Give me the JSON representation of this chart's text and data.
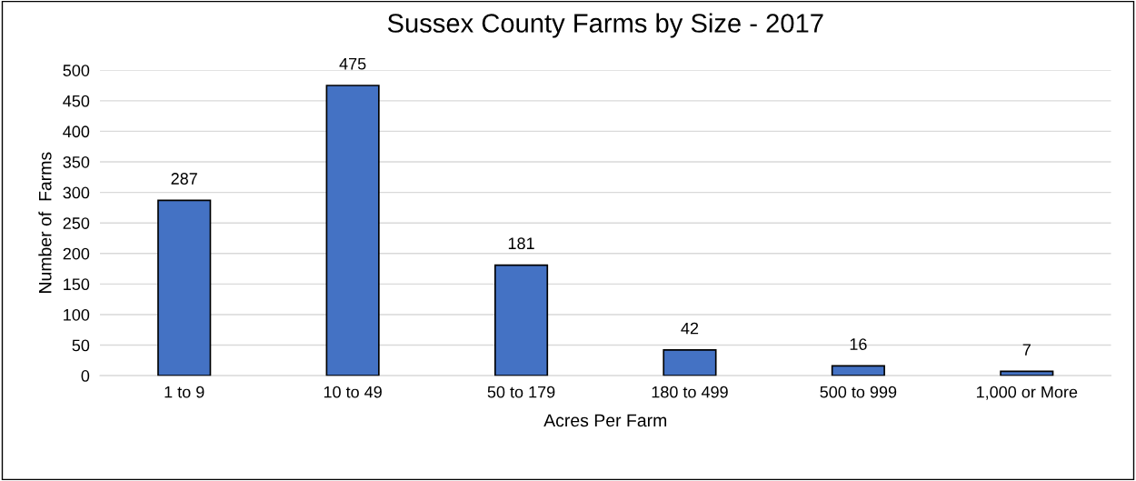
{
  "chart_data": {
    "type": "bar",
    "title": "Sussex County Farms by Size - 2017",
    "xlabel": "Acres Per Farm",
    "ylabel": "Number of  Farms",
    "categories": [
      "1 to 9",
      "10 to 49",
      "50 to 179",
      "180 to 499",
      "500 to 999",
      "1,000 or More"
    ],
    "values": [
      287,
      475,
      181,
      42,
      16,
      7
    ],
    "color": "#4472c4",
    "ylim": [
      0,
      500
    ],
    "yticks": [
      0,
      50,
      100,
      150,
      200,
      250,
      300,
      350,
      400,
      450,
      500
    ],
    "grid": "y",
    "data_labels": true
  }
}
